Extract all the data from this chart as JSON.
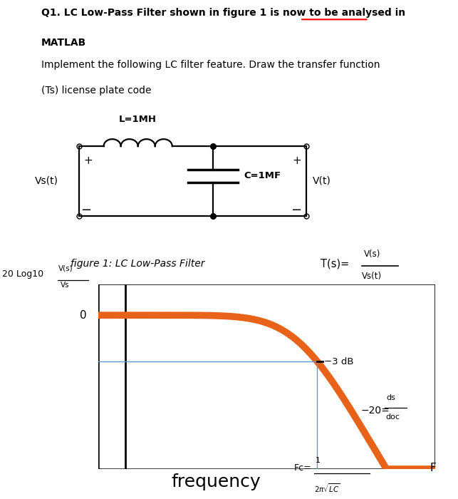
{
  "title_line1": "Q1. LC Low-Pass Filter shown in figure 1 is now to be analysed in",
  "title_line2": "MATLAB",
  "subtitle_line1": "Implement the following LC filter feature. Draw the transfer function",
  "subtitle_line2": "(Ts) license plate code",
  "figure_caption": "figure 1: LC Low-Pass Filter",
  "L_label": "L=1MH",
  "C_label": "C=1MF",
  "Vs_label": "Vs(t)",
  "V_label": "V(t)",
  "plus_left": "+",
  "minus_left": "−",
  "plus_right": "+",
  "minus_right": "−",
  "zero_label": "0",
  "db3_label": "−3 dB",
  "xlabel_text": "frequency",
  "f_label": "F",
  "curve_color": "#E8621A",
  "curve_lw": 7,
  "bg_color": "#ffffff",
  "text_color": "#000000",
  "blue_line_color": "#5B9BD5",
  "fig_width": 6.43,
  "fig_height": 7.0
}
